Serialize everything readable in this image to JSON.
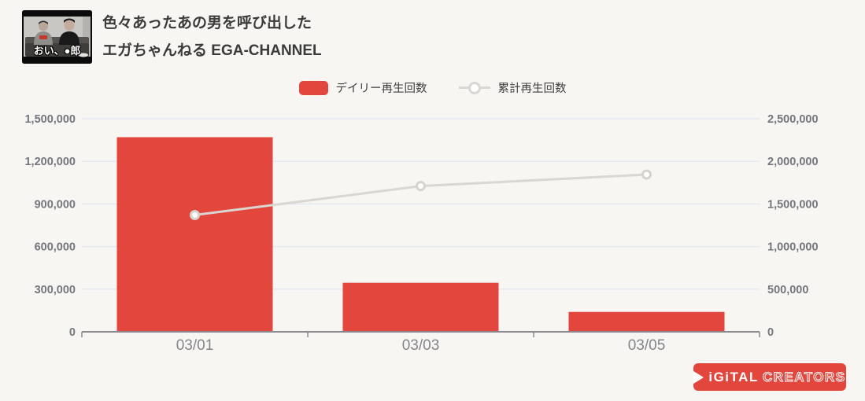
{
  "header": {
    "video_title": "色々あったあの男を呼び出した",
    "channel_name": "エガちゃんねる EGA-CHANNEL",
    "thumbnail_caption": "おい、●郎"
  },
  "legend": {
    "daily_label": "デイリー再生回数",
    "cumulative_label": "累計再生回数"
  },
  "chart_data": {
    "type": "bar",
    "title": "色々あったあの男を呼び出した",
    "subtitle": "エガちゃんねる EGA-CHANNEL",
    "categories": [
      "03/01",
      "03/03",
      "03/05"
    ],
    "series": [
      {
        "name": "デイリー再生回数",
        "type": "bar",
        "axis": "left",
        "color": "#e2463c",
        "values": [
          1370000,
          345000,
          140000
        ]
      },
      {
        "name": "累計再生回数",
        "type": "line",
        "axis": "right",
        "color": "#dad6d2",
        "point_fill": "#ffffff",
        "point_stroke": "#d6d2ce",
        "values": [
          1370000,
          1710000,
          1845000
        ]
      }
    ],
    "left_axis": {
      "ticks": [
        0,
        300000,
        600000,
        900000,
        1200000,
        1500000
      ],
      "max": 1500000
    },
    "right_axis": {
      "ticks": [
        0,
        500000,
        1000000,
        1500000,
        2000000,
        2500000
      ],
      "max": 2500000
    },
    "grid": true,
    "legend_position": "top",
    "colors": {
      "background": "#f8f6f2",
      "gridline": "#e3e8f1",
      "axis_line": "#8b8b8f",
      "y_tick_label": "#75757e",
      "x_tick_label": "#84848b"
    }
  },
  "footer": {
    "play_icon": "play-triangle",
    "logo_text_solid": "iGiTAL",
    "logo_text_outline": "CREATORS"
  }
}
